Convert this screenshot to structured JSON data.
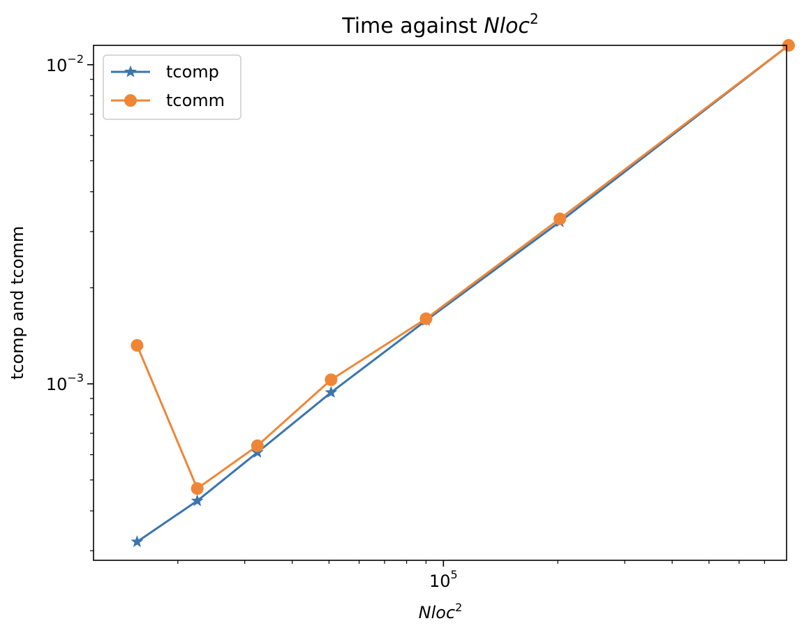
{
  "chart_data": {
    "type": "line",
    "title": "Time against Nloc²",
    "title_parts": {
      "prefix": "Time against ",
      "var": "Nloc",
      "exp": "2"
    },
    "xlabel_parts": {
      "var": "Nloc",
      "exp": "2"
    },
    "ylabel": "tcomp and tcomm",
    "x_scale": "log",
    "y_scale": "log",
    "xlim": [
      12000,
      800000
    ],
    "ylim": [
      0.00028,
      0.0115
    ],
    "grid": false,
    "legend_position": "top-left",
    "x_major_ticks": [
      {
        "value": 100000,
        "base": "10",
        "exp": "5"
      }
    ],
    "y_major_ticks": [
      {
        "value": 0.001,
        "base": "10",
        "exp": "−3"
      },
      {
        "value": 0.01,
        "base": "10",
        "exp": "−2"
      }
    ],
    "x_minor_ticks": [
      20000,
      30000,
      40000,
      50000,
      60000,
      70000,
      80000,
      90000,
      200000,
      300000,
      400000,
      500000,
      600000,
      700000
    ],
    "y_minor_ticks": [
      0.0003,
      0.0004,
      0.0005,
      0.0006,
      0.0007,
      0.0008,
      0.0009,
      0.002,
      0.003,
      0.004,
      0.005,
      0.006,
      0.007,
      0.008,
      0.009
    ],
    "x": [
      15625,
      22500,
      32400,
      50625,
      90000,
      202500,
      810000
    ],
    "series": [
      {
        "name": "tcomp",
        "color": "#3a75ae",
        "marker": "star",
        "values": [
          0.00032,
          0.00043,
          0.00061,
          0.00094,
          0.00158,
          0.00322,
          0.0115
        ]
      },
      {
        "name": "tcomm",
        "color": "#ef8636",
        "marker": "circle",
        "values": [
          0.00132,
          0.00047,
          0.00064,
          0.00103,
          0.0016,
          0.00329,
          0.0115
        ]
      }
    ]
  }
}
